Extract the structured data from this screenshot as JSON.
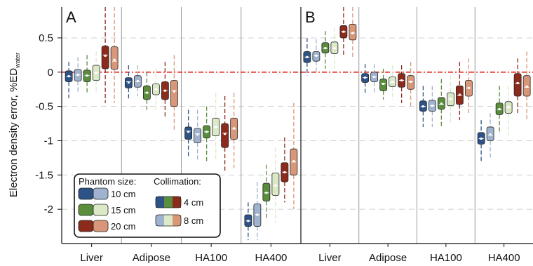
{
  "ylabel_main": "Electron density error, %ED",
  "ylabel_sub": "water",
  "y_ticks": [
    "0.5",
    "0",
    "-0.5",
    "-1",
    "-1.5",
    "-2"
  ],
  "colors": {
    "10cm_4cm": "#2d5286",
    "10cm_8cm": "#9fb3cf",
    "15cm_4cm": "#5a8e3c",
    "15cm_8cm": "#dbe9c7",
    "20cm_4cm": "#8c2a1c",
    "20cm_8cm": "#d9977a",
    "reference_line": "#e8251c"
  },
  "legend": {
    "phantom_title": "Phantom size:",
    "collimation_title": "Collimation:",
    "sizes": [
      "10 cm",
      "15 cm",
      "20 cm"
    ],
    "collimations": [
      "4 cm",
      "8 cm"
    ]
  },
  "chart_data": [
    {
      "type": "box",
      "panel_label": "A",
      "categories": [
        "Liver",
        "Adipose",
        "HA100",
        "HA400"
      ],
      "ylim": [
        -2.5,
        0.95
      ],
      "series_order": [
        "10cm_4cm",
        "10cm_8cm",
        "15cm_4cm",
        "15cm_8cm",
        "20cm_4cm",
        "20cm_8cm"
      ],
      "data": {
        "Liver": [
          {
            "q1": -0.14,
            "q3": 0.02,
            "median": -0.06,
            "mean": -0.06,
            "low": -0.38,
            "high": 0.15
          },
          {
            "q1": -0.13,
            "q3": 0.04,
            "median": -0.04,
            "mean": -0.04,
            "low": -0.3,
            "high": 0.22
          },
          {
            "q1": -0.14,
            "q3": 0.03,
            "median": -0.05,
            "mean": -0.05,
            "low": -0.32,
            "high": 0.25
          },
          {
            "q1": -0.12,
            "q3": 0.1,
            "median": -0.01,
            "mean": -0.01,
            "low": -0.32,
            "high": 0.3
          },
          {
            "q1": 0.05,
            "q3": 0.38,
            "median": 0.25,
            "mean": 0.24,
            "low": -0.45,
            "high": 0.95
          },
          {
            "q1": 0.04,
            "q3": 0.37,
            "median": 0.16,
            "mean": 0.18,
            "low": -0.45,
            "high": 0.95
          }
        ],
        "Adipose": [
          {
            "q1": -0.23,
            "q3": -0.08,
            "median": -0.14,
            "mean": -0.15,
            "low": -0.4,
            "high": 0.1
          },
          {
            "q1": -0.22,
            "q3": -0.05,
            "median": -0.14,
            "mean": -0.13,
            "low": -0.35,
            "high": 0.1
          },
          {
            "q1": -0.4,
            "q3": -0.2,
            "median": -0.3,
            "mean": -0.3,
            "low": -0.55,
            "high": 0.0
          },
          {
            "q1": -0.33,
            "q3": -0.17,
            "median": -0.25,
            "mean": -0.25,
            "low": -0.55,
            "high": 0.05
          },
          {
            "q1": -0.4,
            "q3": -0.14,
            "median": -0.27,
            "mean": -0.27,
            "low": -0.65,
            "high": 0.15
          },
          {
            "q1": -0.5,
            "q3": -0.12,
            "median": -0.27,
            "mean": -0.28,
            "low": -0.85,
            "high": 0.25
          }
        ],
        "HA100": [
          {
            "q1": -0.98,
            "q3": -0.8,
            "median": -0.86,
            "mean": -0.87,
            "low": -1.25,
            "high": -0.55
          },
          {
            "q1": -1.03,
            "q3": -0.82,
            "median": -0.9,
            "mean": -0.91,
            "low": -1.3,
            "high": -0.55
          },
          {
            "q1": -0.96,
            "q3": -0.78,
            "median": -0.87,
            "mean": -0.87,
            "low": -1.3,
            "high": -0.5
          },
          {
            "q1": -0.93,
            "q3": -0.67,
            "median": -0.8,
            "mean": -0.8,
            "low": -1.3,
            "high": -0.3
          },
          {
            "q1": -1.1,
            "q3": -0.75,
            "median": -0.89,
            "mean": -0.9,
            "low": -1.45,
            "high": -0.35
          },
          {
            "q1": -0.98,
            "q3": -0.67,
            "median": -0.83,
            "mean": -0.82,
            "low": -1.4,
            "high": -0.3
          }
        ],
        "HA400": [
          {
            "q1": -2.25,
            "q3": -2.08,
            "median": -2.17,
            "mean": -2.17,
            "low": -2.45,
            "high": -1.9
          },
          {
            "q1": -2.25,
            "q3": -1.92,
            "median": -2.08,
            "mean": -2.08,
            "low": -2.45,
            "high": -1.6
          },
          {
            "q1": -1.88,
            "q3": -1.62,
            "median": -1.76,
            "mean": -1.76,
            "low": -2.15,
            "high": -1.35
          },
          {
            "q1": -1.8,
            "q3": -1.47,
            "median": -1.66,
            "mean": -1.65,
            "low": -2.2,
            "high": -1.1
          },
          {
            "q1": -1.6,
            "q3": -1.32,
            "median": -1.46,
            "mean": -1.46,
            "low": -1.9,
            "high": -0.95
          },
          {
            "q1": -1.5,
            "q3": -1.12,
            "median": -1.31,
            "mean": -1.3,
            "low": -2.0,
            "high": -0.45
          }
        ]
      }
    },
    {
      "type": "box",
      "panel_label": "B",
      "categories": [
        "Liver",
        "Adipose",
        "HA100",
        "HA400"
      ],
      "ylim": [
        -2.5,
        0.95
      ],
      "series_order": [
        "10cm_4cm",
        "10cm_8cm",
        "15cm_4cm",
        "15cm_8cm",
        "20cm_4cm",
        "20cm_8cm"
      ],
      "data": {
        "Liver": [
          {
            "q1": 0.14,
            "q3": 0.3,
            "median": 0.22,
            "mean": 0.22,
            "low": -0.05,
            "high": 0.5
          },
          {
            "q1": 0.16,
            "q3": 0.3,
            "median": 0.24,
            "mean": 0.24,
            "low": 0.0,
            "high": 0.48
          },
          {
            "q1": 0.28,
            "q3": 0.43,
            "median": 0.35,
            "mean": 0.35,
            "low": 0.05,
            "high": 0.6
          },
          {
            "q1": 0.27,
            "q3": 0.44,
            "median": 0.35,
            "mean": 0.35,
            "low": 0.05,
            "high": 0.65
          },
          {
            "q1": 0.5,
            "q3": 0.68,
            "median": 0.59,
            "mean": 0.59,
            "low": 0.25,
            "high": 0.95
          },
          {
            "q1": 0.47,
            "q3": 0.7,
            "median": 0.57,
            "mean": 0.57,
            "low": 0.2,
            "high": 0.95
          }
        ],
        "Adipose": [
          {
            "q1": -0.15,
            "q3": -0.02,
            "median": -0.08,
            "mean": -0.08,
            "low": -0.3,
            "high": 0.12
          },
          {
            "q1": -0.14,
            "q3": 0.0,
            "median": -0.07,
            "mean": -0.07,
            "low": -0.3,
            "high": 0.12
          },
          {
            "q1": -0.27,
            "q3": -0.1,
            "median": -0.17,
            "mean": -0.17,
            "low": -0.4,
            "high": 0.05
          },
          {
            "q1": -0.21,
            "q3": -0.07,
            "median": -0.15,
            "mean": -0.14,
            "low": -0.4,
            "high": 0.1
          },
          {
            "q1": -0.22,
            "q3": -0.02,
            "median": -0.12,
            "mean": -0.12,
            "low": -0.45,
            "high": 0.1
          },
          {
            "q1": -0.25,
            "q3": -0.05,
            "median": -0.14,
            "mean": -0.14,
            "low": -0.5,
            "high": 0.15
          }
        ],
        "HA100": [
          {
            "q1": -0.57,
            "q3": -0.42,
            "median": -0.5,
            "mean": -0.5,
            "low": -0.8,
            "high": -0.2
          },
          {
            "q1": -0.57,
            "q3": -0.41,
            "median": -0.49,
            "mean": -0.49,
            "low": -0.8,
            "high": -0.2
          },
          {
            "q1": -0.54,
            "q3": -0.37,
            "median": -0.47,
            "mean": -0.46,
            "low": -0.8,
            "high": -0.1
          },
          {
            "q1": -0.49,
            "q3": -0.3,
            "median": -0.39,
            "mean": -0.39,
            "low": -0.75,
            "high": -0.05
          },
          {
            "q1": -0.47,
            "q3": -0.2,
            "median": -0.34,
            "mean": -0.33,
            "low": -0.7,
            "high": 0.15
          },
          {
            "q1": -0.35,
            "q3": -0.12,
            "median": -0.23,
            "mean": -0.23,
            "low": -0.6,
            "high": 0.2
          }
        ],
        "HA400": [
          {
            "q1": -1.05,
            "q3": -0.88,
            "median": -0.97,
            "mean": -0.97,
            "low": -1.3,
            "high": -0.7
          },
          {
            "q1": -1.0,
            "q3": -0.8,
            "median": -0.92,
            "mean": -0.91,
            "low": -1.25,
            "high": -0.6
          },
          {
            "q1": -0.62,
            "q3": -0.45,
            "median": -0.55,
            "mean": -0.54,
            "low": -0.9,
            "high": -0.2
          },
          {
            "q1": -0.6,
            "q3": -0.43,
            "median": -0.52,
            "mean": -0.51,
            "low": -0.95,
            "high": -0.2
          },
          {
            "q1": -0.35,
            "q3": -0.02,
            "median": -0.16,
            "mean": -0.16,
            "low": -0.6,
            "high": 0.2
          },
          {
            "q1": -0.35,
            "q3": -0.05,
            "median": -0.22,
            "mean": -0.21,
            "low": -0.7,
            "high": 0.3
          }
        ]
      }
    }
  ]
}
